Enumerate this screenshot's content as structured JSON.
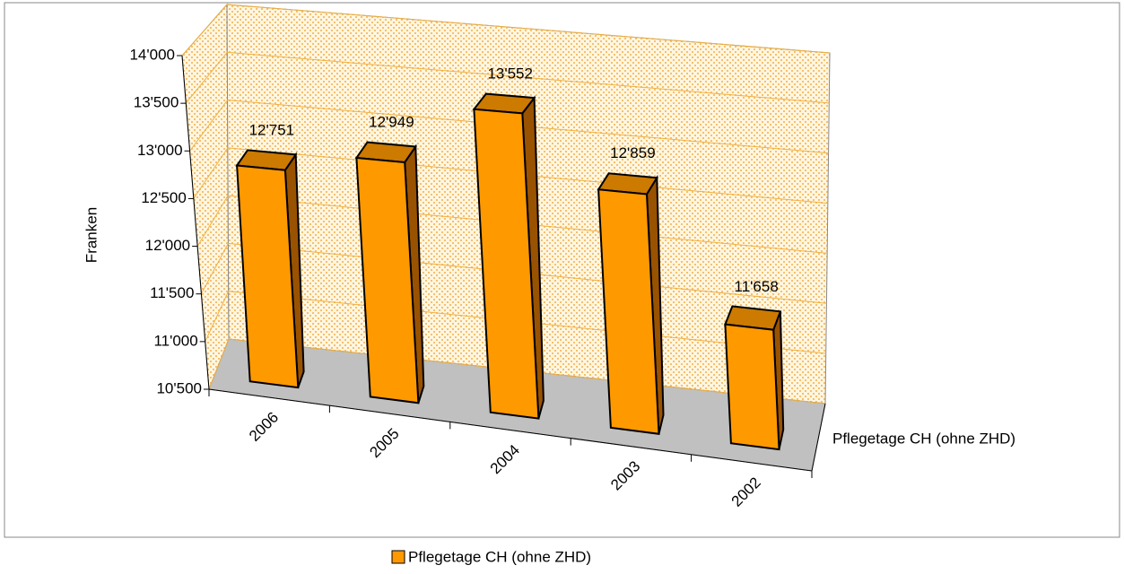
{
  "chart_data": {
    "type": "bar3d",
    "y_label": "Franken",
    "categories": [
      "2006",
      "2005",
      "2004",
      "2003",
      "2002"
    ],
    "series": [
      {
        "name": "Pflegetage CH (ohne ZHD)",
        "color": "#ff9900",
        "values": [
          12751,
          12949,
          13552,
          12859,
          11658
        ],
        "value_labels": [
          "12'751",
          "12'949",
          "13'552",
          "12'859",
          "11'658"
        ]
      }
    ],
    "ylim": [
      10500,
      14000
    ],
    "yticks": [
      {
        "value": 10500,
        "label": "10'500"
      },
      {
        "value": 11000,
        "label": "11'000"
      },
      {
        "value": 11500,
        "label": "11'500"
      },
      {
        "value": 12000,
        "label": "12'000"
      },
      {
        "value": 12500,
        "label": "12'500"
      },
      {
        "value": 13000,
        "label": "13'000"
      },
      {
        "value": 13500,
        "label": "13'500"
      },
      {
        "value": 14000,
        "label": "14'000"
      }
    ],
    "grid": true,
    "legend": "bottom"
  }
}
